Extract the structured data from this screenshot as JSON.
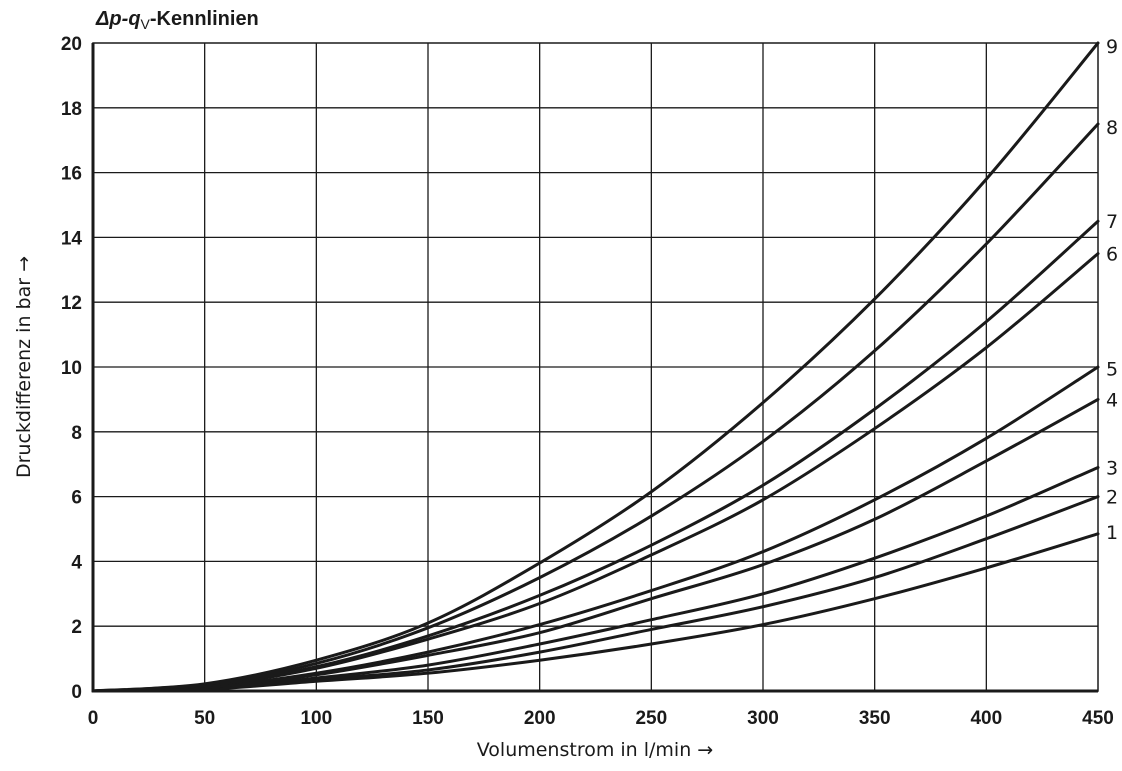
{
  "chart_data": {
    "type": "line",
    "title_parts": {
      "delta_p": "Δp",
      "dash1": "-",
      "q": "q",
      "sub_v": "V",
      "rest": "-Kennlinien"
    },
    "xlabel": "Volumenstrom in l/min →",
    "ylabel": "Druckdifferenz in bar →",
    "xlim": [
      0,
      450
    ],
    "ylim": [
      0,
      20
    ],
    "x_ticks": [
      0,
      50,
      100,
      150,
      200,
      250,
      300,
      350,
      400,
      450
    ],
    "y_ticks": [
      0,
      2,
      4,
      6,
      8,
      10,
      12,
      14,
      16,
      18,
      20
    ],
    "grid": true,
    "x": [
      0,
      50,
      100,
      150,
      200,
      250,
      300,
      350,
      400,
      450
    ],
    "series": [
      {
        "name": "1",
        "values": [
          0,
          0.05,
          0.3,
          0.55,
          0.95,
          1.45,
          2.05,
          2.85,
          3.8,
          4.85
        ]
      },
      {
        "name": "2",
        "values": [
          0,
          0.06,
          0.35,
          0.65,
          1.2,
          1.9,
          2.6,
          3.5,
          4.7,
          6.0
        ]
      },
      {
        "name": "3",
        "values": [
          0,
          0.08,
          0.4,
          0.8,
          1.45,
          2.2,
          3.0,
          4.1,
          5.4,
          6.9
        ]
      },
      {
        "name": "4",
        "values": [
          0,
          0.1,
          0.5,
          1.1,
          1.8,
          2.85,
          3.9,
          5.3,
          7.1,
          9.0
        ]
      },
      {
        "name": "5",
        "values": [
          0,
          0.12,
          0.55,
          1.2,
          2.05,
          3.1,
          4.3,
          5.9,
          7.8,
          10.0
        ]
      },
      {
        "name": "6",
        "values": [
          0,
          0.15,
          0.7,
          1.6,
          2.7,
          4.2,
          5.9,
          8.1,
          10.6,
          13.5
        ]
      },
      {
        "name": "7",
        "values": [
          0,
          0.17,
          0.75,
          1.7,
          2.95,
          4.5,
          6.35,
          8.7,
          11.4,
          14.5
        ]
      },
      {
        "name": "8",
        "values": [
          0,
          0.2,
          0.85,
          1.95,
          3.5,
          5.4,
          7.7,
          10.5,
          13.8,
          17.5
        ]
      },
      {
        "name": "9",
        "values": [
          0,
          0.22,
          0.95,
          2.1,
          3.95,
          6.15,
          8.9,
          12.1,
          15.8,
          20.0
        ]
      }
    ],
    "curve_label_y": [
      4.9,
      6.0,
      6.9,
      9.0,
      9.95,
      13.5,
      14.5,
      17.4,
      19.9
    ]
  }
}
